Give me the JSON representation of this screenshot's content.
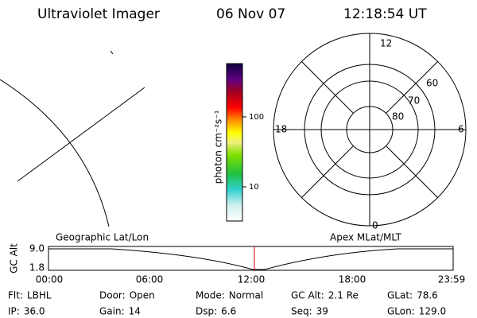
{
  "header": {
    "title": "Ultraviolet Imager",
    "date": "06 Nov 07",
    "time": "12:18:54 UT"
  },
  "colorbar": {
    "unit": "photon cm⁻²s⁻¹",
    "labels": [
      "100",
      "10"
    ]
  },
  "polar": {
    "mlt_labels": [
      "12",
      "6",
      "18",
      "0"
    ],
    "lat_labels": [
      "60",
      "70",
      "80"
    ]
  },
  "timeline": {
    "left_title": "Geographic Lat/Lon",
    "right_title": "Apex MLat/MLT",
    "y_title": "GC Alt",
    "y_labels": [
      "9.0",
      "1.8"
    ],
    "x_labels": [
      "00:00",
      "06:00",
      "12:00",
      "18:00",
      "23:59"
    ]
  },
  "status": [
    [
      {
        "label": "Flt:",
        "value": "LBHL"
      },
      {
        "label": "Door:",
        "value": "Open"
      },
      {
        "label": "Mode:",
        "value": "Normal"
      },
      {
        "label": "GC Alt:",
        "value": "2.1 Re"
      },
      {
        "label": "GLat:",
        "value": "78.6"
      }
    ],
    [
      {
        "label": "IP:",
        "value": "36.0"
      },
      {
        "label": "Gain:",
        "value": "14"
      },
      {
        "label": "Dsp:",
        "value": "6.6"
      },
      {
        "label": "Seq:",
        "value": "39"
      },
      {
        "label": "GLon:",
        "value": "129.0"
      }
    ]
  ]
}
